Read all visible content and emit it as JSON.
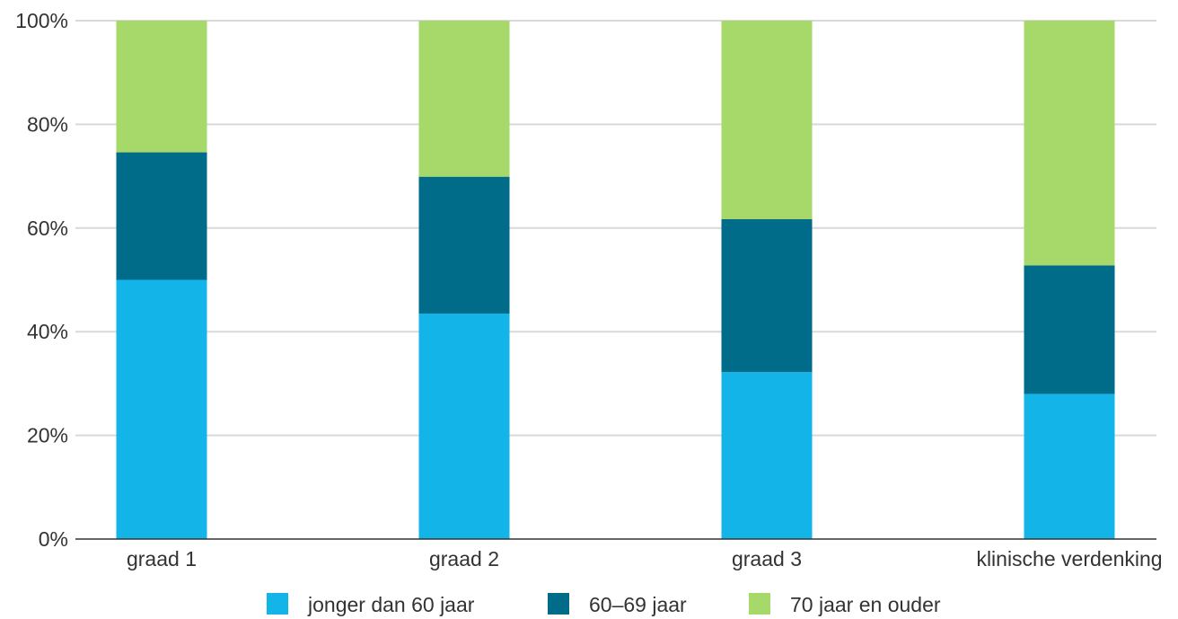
{
  "chart_data": {
    "type": "bar",
    "stacked": true,
    "categories": [
      "graad 1",
      "graad 2",
      "graad 3",
      "klinische verdenking"
    ],
    "series": [
      {
        "name": "jonger dan 60 jaar",
        "values": [
          50,
          43.5,
          32.2,
          28
        ],
        "color": "#13b4e8"
      },
      {
        "name": "60–69 jaar",
        "values": [
          24.6,
          26.4,
          29.5,
          24.8
        ],
        "color": "#006c8a"
      },
      {
        "name": "70 jaar en ouder",
        "values": [
          25.4,
          30.1,
          38.3,
          47.2
        ],
        "color": "#a6d96a"
      }
    ],
    "ylim": [
      0,
      100
    ],
    "yticks": [
      "0%",
      "20%",
      "40%",
      "60%",
      "80%",
      "100%"
    ],
    "ytick_values": [
      0,
      20,
      40,
      60,
      80,
      100
    ],
    "grid": true,
    "legend_position": "bottom",
    "gridline_color": "#d9d9d9",
    "axis_color": "#333333"
  }
}
